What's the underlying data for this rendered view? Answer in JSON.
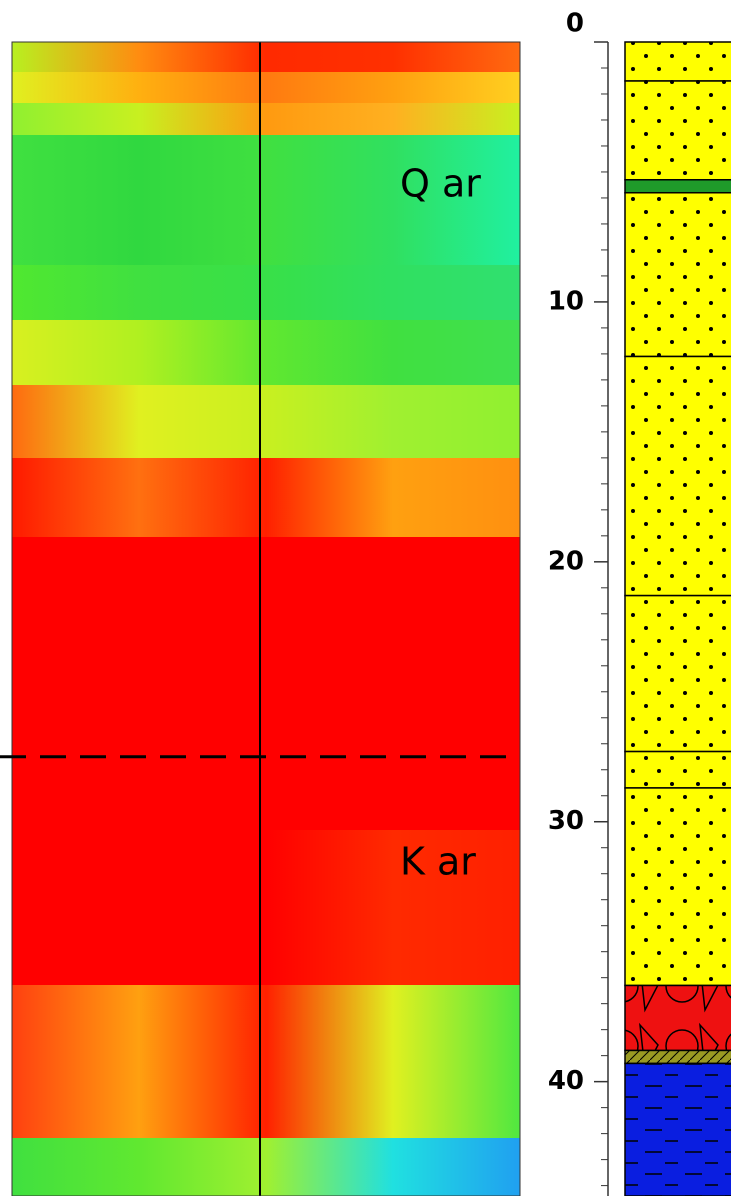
{
  "chart_data": {
    "type": "section",
    "annotations": [
      "Q ar",
      "K ar"
    ],
    "ylim": [
      0,
      44.4
    ],
    "yticks": [
      0,
      10,
      20,
      30,
      40
    ],
    "minor_yticks": [
      1,
      2,
      3,
      4,
      5,
      6,
      7,
      8,
      9,
      11,
      12,
      13,
      14,
      15,
      16,
      17,
      18,
      19,
      21,
      22,
      23,
      24,
      25,
      26,
      27,
      28,
      29,
      31,
      32,
      33,
      34,
      35,
      36,
      37,
      38,
      39,
      41,
      42,
      43,
      44
    ],
    "boundary_depth": 27.5,
    "lithology": [
      {
        "top": 0,
        "bottom": 1.5,
        "color": "#ffff00",
        "pattern": "dots"
      },
      {
        "top": 1.5,
        "bottom": 5.3,
        "color": "#ffff00",
        "pattern": "dots"
      },
      {
        "top": 5.3,
        "bottom": 5.8,
        "color": "#1f9a2a",
        "pattern": "none"
      },
      {
        "top": 5.8,
        "bottom": 12.1,
        "color": "#ffff00",
        "pattern": "dots"
      },
      {
        "top": 12.1,
        "bottom": 21.3,
        "color": "#ffff00",
        "pattern": "dots"
      },
      {
        "top": 21.3,
        "bottom": 27.3,
        "color": "#ffff00",
        "pattern": "dots"
      },
      {
        "top": 27.3,
        "bottom": 28.7,
        "color": "#ffff00",
        "pattern": "dots"
      },
      {
        "top": 28.7,
        "bottom": 36.3,
        "color": "#ffff00",
        "pattern": "dots"
      },
      {
        "top": 36.3,
        "bottom": 38.8,
        "color": "#ee1111",
        "pattern": "gravel"
      },
      {
        "top": 38.8,
        "bottom": 39.3,
        "color": "#9a9a22",
        "pattern": "hatch"
      },
      {
        "top": 39.3,
        "bottom": 44.4,
        "color": "#0a1ee0",
        "pattern": "dashes"
      }
    ]
  }
}
